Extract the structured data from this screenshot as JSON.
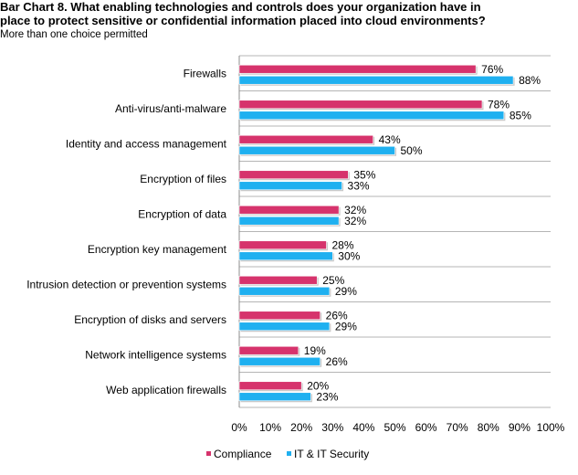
{
  "title_line1": "Bar Chart 8. What enabling technologies and controls does your organization have in",
  "title_line2": "place to protect sensitive or confidential information placed into cloud environments?",
  "subtitle": "More than one choice permitted",
  "colors": {
    "compliance": "#d6336c",
    "it_security": "#1fb0f0",
    "grid": "#b5b5b5",
    "axis": "#8c8c8c"
  },
  "chart_data": {
    "type": "bar",
    "orientation": "horizontal",
    "categories": [
      "Firewalls",
      "Anti-virus/anti-malware",
      "Identity and access management",
      "Encryption of files",
      "Encryption of data",
      "Encryption key management",
      "Intrusion detection or prevention systems",
      "Encryption of disks and servers",
      "Network intelligence systems",
      "Web application firewalls"
    ],
    "series": [
      {
        "name": "Compliance",
        "values": [
          76,
          78,
          43,
          35,
          32,
          28,
          25,
          26,
          19,
          20
        ]
      },
      {
        "name": "IT & IT Security",
        "values": [
          88,
          85,
          50,
          33,
          32,
          30,
          29,
          29,
          26,
          23
        ]
      }
    ],
    "value_labels": [
      [
        "76%",
        "78%",
        "43%",
        "35%",
        "32%",
        "28%",
        "25%",
        "26%",
        "19%",
        "20%"
      ],
      [
        "88%",
        "85%",
        "50%",
        "33%",
        "32%",
        "30%",
        "29%",
        "29%",
        "26%",
        "23%"
      ]
    ],
    "xlim": [
      0,
      100
    ],
    "xticks": [
      "0%",
      "10%",
      "20%",
      "30%",
      "40%",
      "50%",
      "60%",
      "70%",
      "80%",
      "90%",
      "100%"
    ],
    "grid": true,
    "legend_position": "bottom"
  }
}
